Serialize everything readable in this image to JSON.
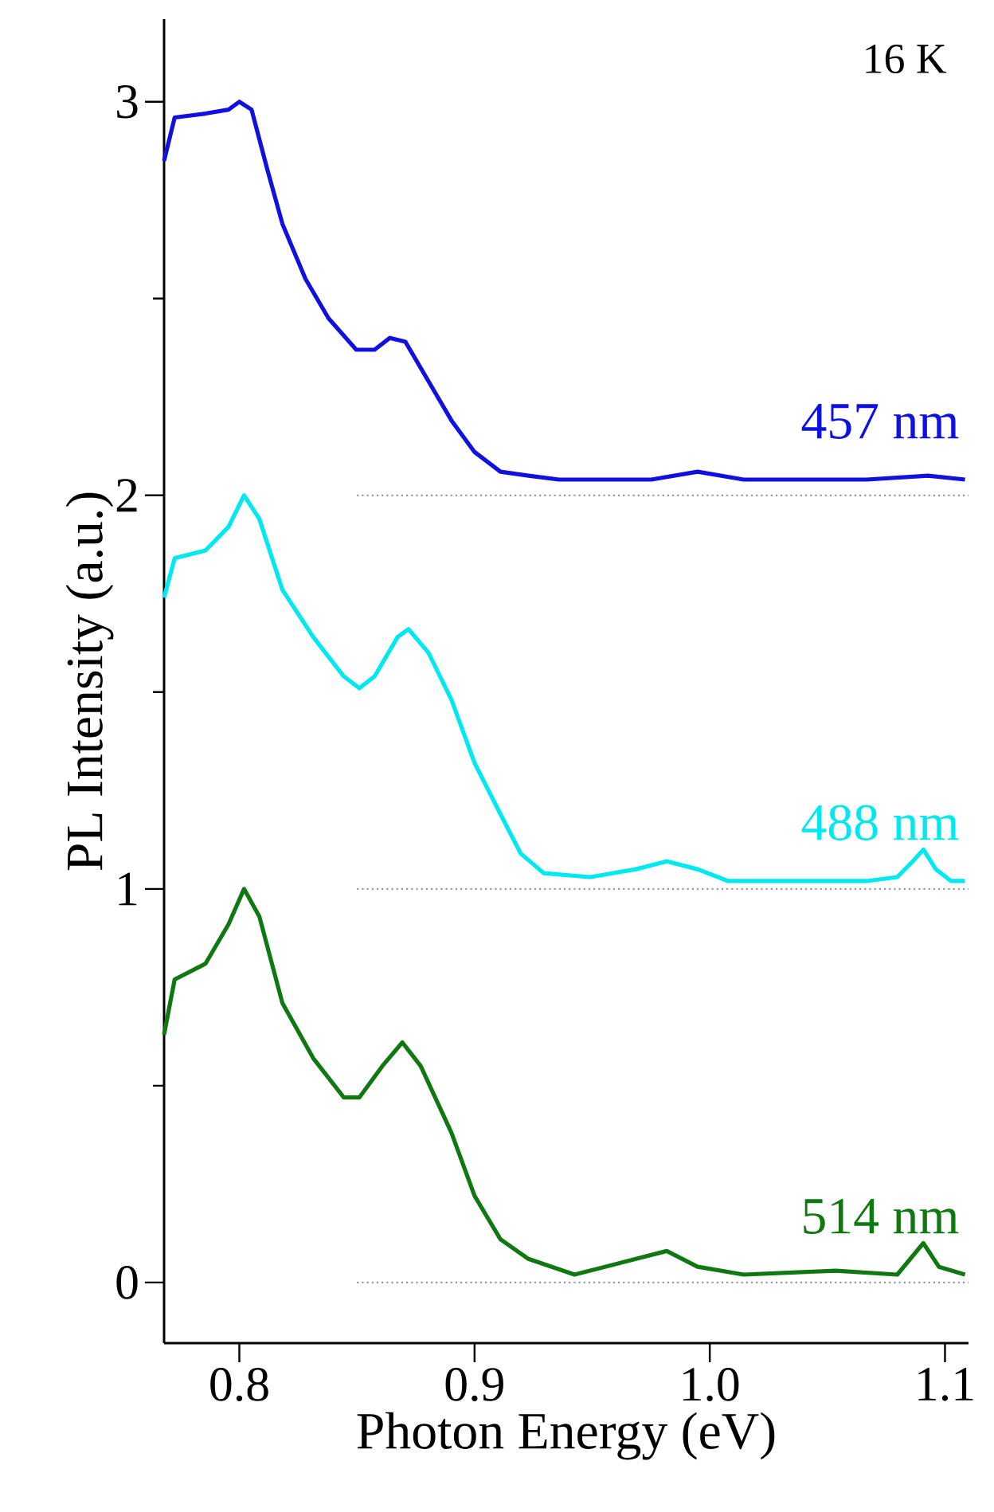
{
  "chart_data": {
    "type": "line",
    "xlabel": "Photon Energy (eV)",
    "ylabel": "PL Intensity (a.u.)",
    "xlim": [
      0.768,
      1.11
    ],
    "ylim": [
      -0.154,
      3.21
    ],
    "xticks": [
      {
        "value": 0.8,
        "label": "0.8"
      },
      {
        "value": 0.9,
        "label": "0.9"
      },
      {
        "value": 1.0,
        "label": "1.0"
      },
      {
        "value": 1.1,
        "label": "1.1"
      }
    ],
    "yticks": [
      0,
      {
        "value": 0.5,
        "label": null
      },
      1,
      {
        "value": 1.5,
        "label": null
      },
      2,
      {
        "value": 2.5,
        "label": null
      },
      3
    ],
    "annotations": [
      "16 K"
    ],
    "marker": "none",
    "line_style": "solid",
    "grid": false,
    "legend": false,
    "series": [
      {
        "name": "457 nm",
        "color": "#1010e0",
        "x": [
          0.768,
          0.7725,
          0.7856,
          0.7954,
          0.8,
          0.8052,
          0.8118,
          0.8183,
          0.8281,
          0.8379,
          0.8497,
          0.8575,
          0.864,
          0.8706,
          0.8804,
          0.8902,
          0.9,
          0.911,
          0.9229,
          0.9359,
          0.949,
          0.9752,
          0.9948,
          1.0144,
          1.0405,
          1.0667,
          1.0928,
          1.1085
        ],
        "values": [
          2.85,
          2.96,
          2.97,
          2.98,
          3.0,
          2.98,
          2.83,
          2.69,
          2.55,
          2.45,
          2.37,
          2.37,
          2.4,
          2.39,
          2.29,
          2.19,
          2.11,
          2.06,
          2.05,
          2.04,
          2.04,
          2.04,
          2.06,
          2.04,
          2.04,
          2.04,
          2.05,
          2.04
        ]
      },
      {
        "name": "488 nm",
        "color": "#00e8f0",
        "x": [
          0.768,
          0.7725,
          0.7856,
          0.7954,
          0.802,
          0.8085,
          0.8183,
          0.8314,
          0.8444,
          0.851,
          0.8575,
          0.8673,
          0.8719,
          0.8804,
          0.8902,
          0.9,
          0.911,
          0.9196,
          0.9294,
          0.949,
          0.9686,
          0.9817,
          0.9948,
          1.0078,
          1.0405,
          1.0667,
          1.0797,
          1.0863,
          1.0908,
          1.0961,
          1.1026,
          1.1085
        ],
        "values": [
          1.74,
          1.84,
          1.86,
          1.92,
          2.0,
          1.94,
          1.76,
          1.64,
          1.54,
          1.51,
          1.54,
          1.64,
          1.66,
          1.6,
          1.48,
          1.32,
          1.19,
          1.09,
          1.04,
          1.03,
          1.05,
          1.07,
          1.05,
          1.02,
          1.02,
          1.02,
          1.03,
          1.07,
          1.1,
          1.05,
          1.02,
          1.02
        ]
      },
      {
        "name": "514 nm",
        "color": "#107810",
        "x": [
          0.768,
          0.7725,
          0.7856,
          0.7954,
          0.802,
          0.8085,
          0.8183,
          0.8314,
          0.8444,
          0.851,
          0.8608,
          0.8693,
          0.8771,
          0.8902,
          0.9,
          0.911,
          0.9229,
          0.9425,
          0.9686,
          0.9817,
          0.9948,
          1.0144,
          1.0536,
          1.0797,
          1.0908,
          1.0974,
          1.1085
        ],
        "values": [
          0.63,
          0.77,
          0.81,
          0.91,
          1.0,
          0.93,
          0.71,
          0.57,
          0.47,
          0.47,
          0.55,
          0.61,
          0.55,
          0.38,
          0.22,
          0.11,
          0.06,
          0.02,
          0.06,
          0.08,
          0.04,
          0.02,
          0.03,
          0.02,
          0.1,
          0.04,
          0.02
        ]
      },
      {
        "color": "#999999",
        "line_style": "dotted",
        "x": [
          0.85,
          1.11
        ],
        "values": [
          2,
          2
        ]
      },
      {
        "color": "#999999",
        "line_style": "dotted",
        "x": [
          0.85,
          1.11
        ],
        "values": [
          1,
          1
        ]
      },
      {
        "color": "#999999",
        "line_style": "dotted",
        "x": [
          0.85,
          1.11
        ],
        "values": [
          0,
          0
        ]
      }
    ]
  }
}
